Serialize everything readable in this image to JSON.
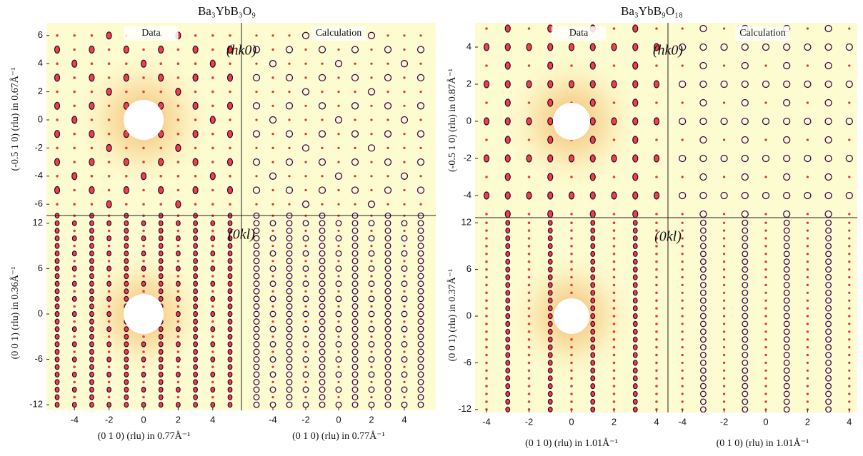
{
  "figures": [
    {
      "title": "Ba₃YbB₃O₉",
      "top": {
        "data_label": "Data",
        "calc_label": "Calculation",
        "plane": "(hk0)",
        "ylabel": "(-0.5 1 0) (rlu) in 0.67Å⁻¹",
        "yticks": [
          6,
          4,
          2,
          0,
          -2,
          -4,
          -6
        ]
      },
      "bottom": {
        "plane": "(0kl)",
        "ylabel": "(0 0 1) (rlu) in 0.36Å⁻¹",
        "yticks": [
          12,
          6,
          0,
          -6,
          -12
        ]
      },
      "data_xticks": [
        -4,
        -2,
        0,
        2,
        4
      ],
      "data_xlabel": "(0 1 0) (rlu) in 0.77Å⁻¹",
      "calc_xticks": [
        -4,
        -2,
        0,
        2,
        4
      ],
      "calc_xlabel": "(0 1 0) (rlu) in 0.77Å⁻¹"
    },
    {
      "title": "Ba₃YbB₉O₁₈",
      "top": {
        "data_label": "Data",
        "calc_label": "Calculation",
        "plane": "(hk0)",
        "ylabel": "(-0.5 1 0) (rlu) in 0.87Å⁻¹",
        "yticks": [
          4,
          2,
          0,
          -2,
          -4
        ]
      },
      "bottom": {
        "plane": "(0kl)",
        "ylabel": "(0 0 1) (rlu) in 0.37Å⁻¹",
        "yticks": [
          12,
          6,
          0,
          -6,
          -12
        ]
      },
      "data_xticks": [
        -4,
        -2,
        0,
        2,
        4
      ],
      "data_xlabel": "(0 1 0) (rlu) in 1.01Å⁻¹",
      "calc_xticks": [
        -4,
        -2,
        0,
        2,
        4
      ],
      "calc_xlabel": "(0 1 0) (rlu) in 1.01Å⁻¹"
    }
  ]
}
